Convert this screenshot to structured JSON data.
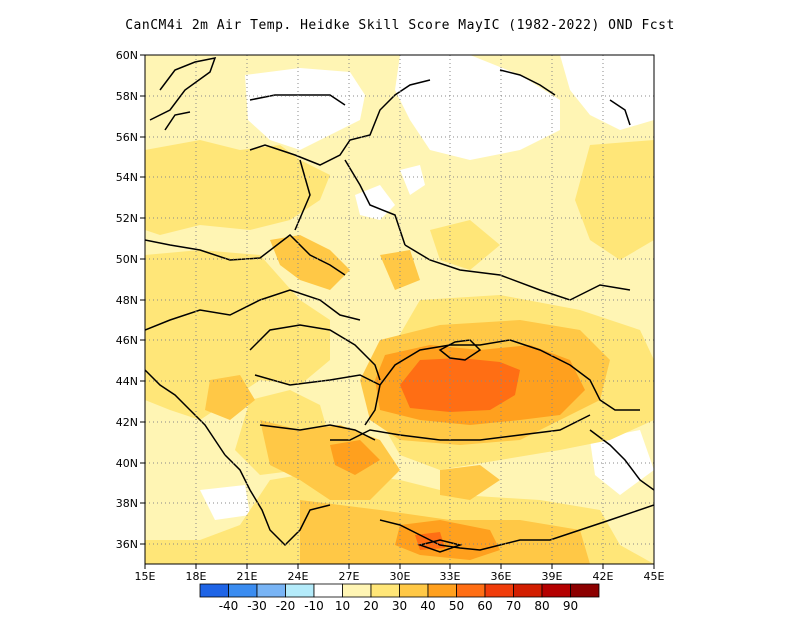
{
  "title": "CanCM4i  2m Air Temp. Heidke Skill Score MayIC (1982-2022) OND Fcst",
  "map": {
    "lon_range": [
      15,
      45
    ],
    "lat_range": [
      35,
      60
    ],
    "lon_ticks": [
      "15E",
      "18E",
      "21E",
      "24E",
      "27E",
      "30E",
      "33E",
      "36E",
      "39E",
      "42E",
      "45E"
    ],
    "lat_ticks": [
      "36N",
      "38N",
      "40N",
      "42N",
      "44N",
      "46N",
      "48N",
      "50N",
      "52N",
      "54N",
      "56N",
      "58N",
      "60N"
    ],
    "grid": "dotted"
  },
  "colorbar": {
    "labels": [
      "-40",
      "-30",
      "-20",
      "-10",
      "10",
      "20",
      "30",
      "40",
      "50",
      "60",
      "70",
      "80",
      "90"
    ],
    "colors": [
      "#1e64e6",
      "#3a8cf0",
      "#78b4f5",
      "#b4ebfa",
      "#ffffff",
      "#fff5b4",
      "#ffe678",
      "#ffc846",
      "#ffa01e",
      "#ff6e14",
      "#f03c0a",
      "#d21e00",
      "#b40000",
      "#8c0000"
    ]
  }
}
